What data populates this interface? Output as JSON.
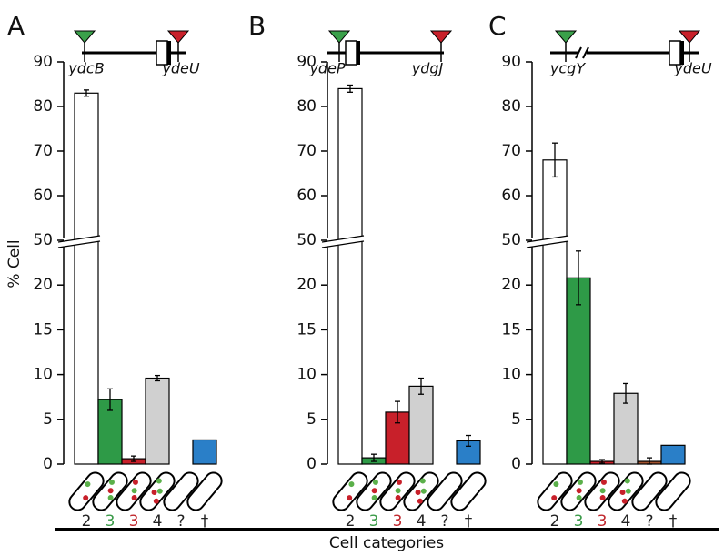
{
  "chart_data": [
    {
      "type": "bar",
      "panel": "A",
      "genes": [
        "ydcB",
        "ydeU"
      ],
      "ylabel": "% Cell",
      "categories": [
        "2",
        "3",
        "3",
        "4",
        "?",
        "†"
      ],
      "category_colors": [
        "#222222",
        "#3a9a48",
        "#c0272d",
        "#222222",
        "#222222",
        "#222222"
      ],
      "colors": [
        "#ffffff",
        "#2e9a47",
        "#c8202a",
        "#d0d0d0",
        "#a0522d",
        "#2a7fc8"
      ],
      "values": [
        83,
        7.2,
        0.6,
        9.6,
        0,
        2.7
      ],
      "errors": [
        0.7,
        1.2,
        0.3,
        0.3,
        null,
        null
      ],
      "ylim": [
        0,
        90
      ],
      "yticks": [
        0,
        5,
        10,
        15,
        20,
        50,
        60,
        70,
        80,
        90
      ],
      "broken_axis": true
    },
    {
      "type": "bar",
      "panel": "B",
      "genes": [
        "ydeP",
        "ydgJ"
      ],
      "categories": [
        "2",
        "3",
        "3",
        "4",
        "?",
        "†"
      ],
      "category_colors": [
        "#222222",
        "#3a9a48",
        "#c0272d",
        "#222222",
        "#222222",
        "#222222"
      ],
      "colors": [
        "#ffffff",
        "#2e9a47",
        "#c8202a",
        "#d0d0d0",
        "#a0522d",
        "#2a7fc8"
      ],
      "values": [
        84,
        0.7,
        5.8,
        8.7,
        0,
        2.6
      ],
      "errors": [
        0.8,
        0.4,
        1.2,
        0.9,
        null,
        0.6
      ],
      "ylim": [
        0,
        90
      ],
      "yticks": [
        0,
        5,
        10,
        15,
        20,
        50,
        60,
        70,
        80,
        90
      ],
      "broken_axis": true
    },
    {
      "type": "bar",
      "panel": "C",
      "genes": [
        "ycgY",
        "ydeU"
      ],
      "categories": [
        "2",
        "3",
        "3",
        "4",
        "?",
        "†"
      ],
      "category_colors": [
        "#222222",
        "#3a9a48",
        "#c0272d",
        "#222222",
        "#222222",
        "#222222"
      ],
      "colors": [
        "#ffffff",
        "#2e9a47",
        "#c8202a",
        "#d0d0d0",
        "#a0522d",
        "#2a7fc8"
      ],
      "values": [
        68,
        20.8,
        0.3,
        7.9,
        0.3,
        2.1
      ],
      "errors": [
        3.8,
        3.0,
        0.2,
        1.1,
        0.4,
        null
      ],
      "ylim": [
        0,
        90
      ],
      "yticks": [
        0,
        5,
        10,
        15,
        20,
        50,
        60,
        70,
        80,
        90
      ],
      "broken_axis": true
    }
  ],
  "footer": {
    "xlabel": "Cell categories"
  }
}
